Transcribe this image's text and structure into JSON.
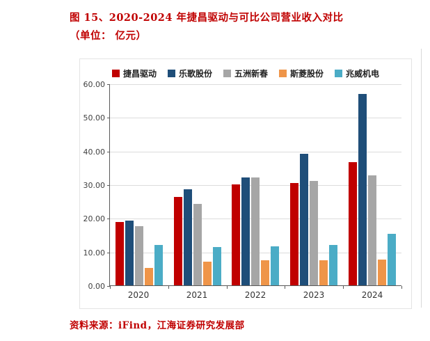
{
  "title": {
    "line1": "图 15、2020-2024 年捷昌驱动与可比公司营业收入对比",
    "line2": "（单位： 亿元）"
  },
  "source": "资料来源：iFind，江海证券研究发展部",
  "colors": {
    "title_red": "#c00000",
    "axis": "#595959",
    "gridline": "#dcdcdc"
  },
  "chart_data": {
    "type": "bar",
    "categories": [
      "2020",
      "2021",
      "2022",
      "2023",
      "2024"
    ],
    "series": [
      {
        "name": "捷昌驱动",
        "color": "#c00000",
        "values": [
          18.9,
          26.3,
          30.0,
          30.4,
          36.6
        ]
      },
      {
        "name": "乐歌股份",
        "color": "#1f4e79",
        "values": [
          19.3,
          28.6,
          32.1,
          39.1,
          56.9
        ]
      },
      {
        "name": "五洲新春",
        "color": "#a6a6a6",
        "values": [
          17.6,
          24.2,
          32.1,
          31.1,
          32.6
        ]
      },
      {
        "name": "斯菱股份",
        "color": "#ef9549",
        "values": [
          5.2,
          7.0,
          7.5,
          7.5,
          7.7
        ]
      },
      {
        "name": "兆威机电",
        "color": "#4bacc6",
        "values": [
          12.0,
          11.4,
          11.6,
          12.0,
          15.3
        ]
      }
    ],
    "title": "2020-2024 年捷昌驱动与可比公司营业收入对比（亿元）",
    "xlabel": "",
    "ylabel": "",
    "ylim": [
      0,
      60
    ],
    "ytick_step": 10,
    "ytick_labels": [
      "0.00",
      "10.00",
      "20.00",
      "30.00",
      "40.00",
      "50.00",
      "60.00"
    ],
    "grid": true,
    "legend_position": "top"
  }
}
